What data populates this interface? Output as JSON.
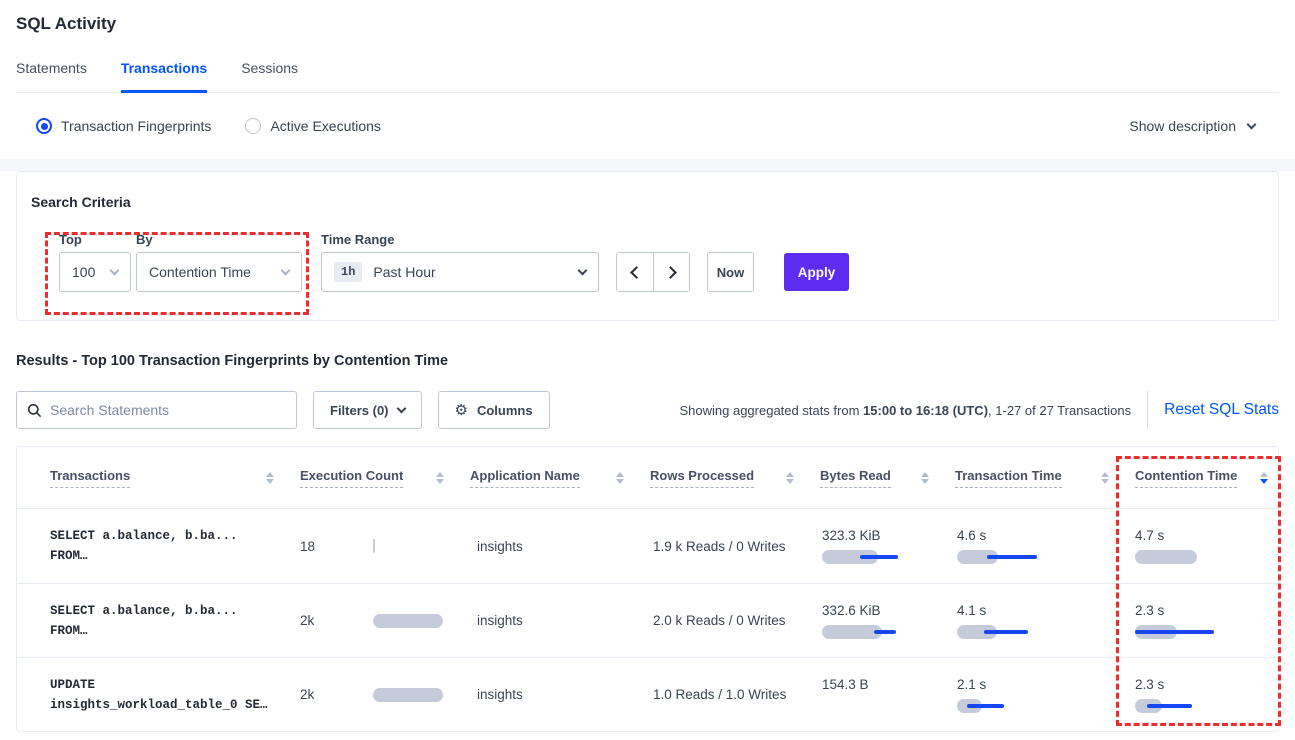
{
  "colors": {
    "blue": "#0055FF",
    "accent-blue": "#1547F5",
    "purple": "#5E2BF0",
    "red": "#ED2D2D",
    "bar-gray": "#C6CBDB",
    "text-dark": "#242A35",
    "text-mid": "#394455",
    "border-light": "#E7ECF3",
    "border-input": "#C0C6D9"
  },
  "icons": {
    "gear": "⚙"
  },
  "header": {
    "title": "SQL Activity",
    "tabs": [
      {
        "label": "Statements",
        "active": false
      },
      {
        "label": "Transactions",
        "active": true
      },
      {
        "label": "Sessions",
        "active": false
      }
    ]
  },
  "toggle": {
    "options": [
      {
        "label": "Transaction Fingerprints",
        "selected": true
      },
      {
        "label": "Active Executions",
        "selected": false
      }
    ],
    "show_description_label": "Show description"
  },
  "criteria": {
    "heading": "Search Criteria",
    "top_label": "Top",
    "top_value": "100",
    "by_label": "By",
    "by_value": "Contention Time",
    "time_range_label": "Time Range",
    "time_range_badge": "1h",
    "time_range_value": "Past Hour",
    "now_label": "Now",
    "apply_label": "Apply"
  },
  "results": {
    "heading": "Results - Top 100 Transaction Fingerprints by Contention Time",
    "search_placeholder": "Search Statements",
    "filters_label": "Filters (0)",
    "columns_label": "Columns",
    "stats_prefix": "Showing aggregated stats from ",
    "stats_range": "15:00 to 16:18 (UTC)",
    "stats_suffix": ", 1-27 of 27 Transactions",
    "reset_link": "Reset SQL Stats"
  },
  "table": {
    "headers": [
      {
        "label": "Transactions",
        "sort": null
      },
      {
        "label": "Execution Count",
        "sort": null
      },
      {
        "label": "Application Name",
        "sort": null
      },
      {
        "label": "Rows Processed",
        "sort": null
      },
      {
        "label": "Bytes Read",
        "sort": null
      },
      {
        "label": "Transaction Time",
        "sort": null
      },
      {
        "label": "Contention Time",
        "sort": "desc"
      }
    ],
    "rows": [
      {
        "query": [
          "SELECT a.balance, b.ba...",
          "FROM…"
        ],
        "exec": {
          "value": "18",
          "bar": 2
        },
        "app": "insights",
        "rows_processed": "1.9 k Reads / 0 Writes",
        "bytes": {
          "value": "323.3 KiB",
          "bar": 56,
          "line": [
            38,
            76
          ]
        },
        "txn_time": {
          "value": "4.6 s",
          "bar": 41,
          "line": [
            30,
            80
          ]
        },
        "contention": {
          "value": "4.7 s",
          "bar": 62,
          "line": null
        }
      },
      {
        "query": [
          "SELECT a.balance, b.ba...",
          "FROM…"
        ],
        "exec": {
          "value": "2k",
          "bar": 70
        },
        "app": "insights",
        "rows_processed": "2.0 k Reads / 0 Writes",
        "bytes": {
          "value": "332.6 KiB",
          "bar": 60,
          "line": [
            52,
            74
          ]
        },
        "txn_time": {
          "value": "4.1 s",
          "bar": 40,
          "line": [
            27,
            71
          ]
        },
        "contention": {
          "value": "2.3 s",
          "bar": 42,
          "line": [
            0,
            79
          ]
        }
      },
      {
        "query": [
          "UPDATE",
          "insights_workload_table_0 SE…"
        ],
        "exec": {
          "value": "2k",
          "bar": 70
        },
        "app": "insights",
        "rows_processed": "1.0 Reads / 1.0 Writes",
        "bytes": {
          "value": "154.3 B",
          "bar": 0,
          "line": null
        },
        "txn_time": {
          "value": "2.1 s",
          "bar": 25,
          "line": [
            10,
            47
          ]
        },
        "contention": {
          "value": "2.3 s",
          "bar": 27,
          "line": [
            12,
            57
          ]
        }
      }
    ]
  }
}
